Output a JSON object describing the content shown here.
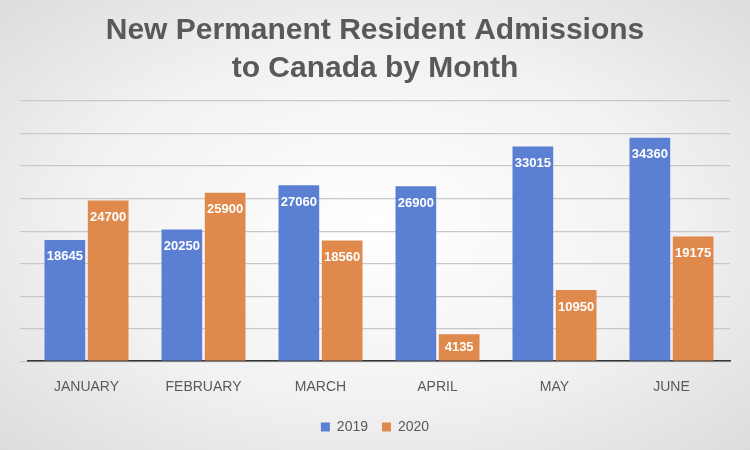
{
  "chart_data": {
    "type": "bar",
    "title": "New Permanent Resident Admissions to Canada by Month",
    "categories": [
      "JANUARY",
      "FEBRUARY",
      "MARCH",
      "APRIL",
      "MAY",
      "JUNE"
    ],
    "series": [
      {
        "name": "2019",
        "color": "#5b7fd3",
        "values": [
          18645,
          20250,
          27060,
          26900,
          33015,
          34360
        ]
      },
      {
        "name": "2020",
        "color": "#e0894d",
        "values": [
          24700,
          25900,
          18560,
          4135,
          10950,
          19175
        ]
      }
    ],
    "ylim": [
      0,
      40000
    ],
    "yticks": [
      0,
      5000,
      10000,
      15000,
      20000,
      25000,
      30000,
      35000,
      40000
    ],
    "grid": true,
    "legend": "bottom",
    "data_labels": true,
    "tick_labels": "x"
  }
}
